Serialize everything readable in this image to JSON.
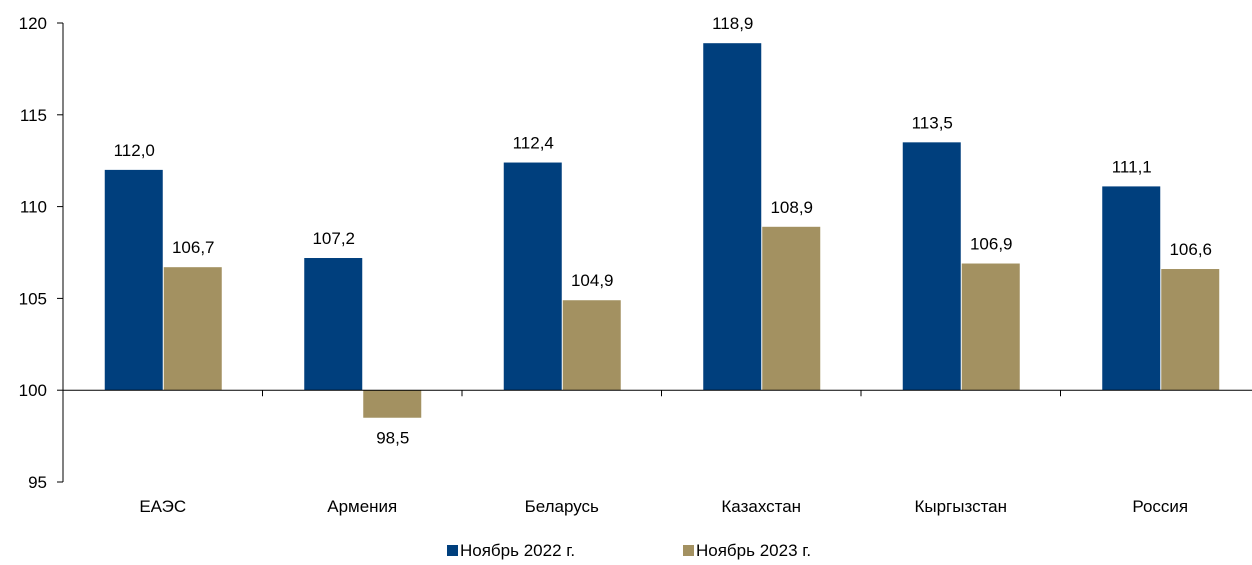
{
  "chart_data": {
    "type": "bar",
    "title": "",
    "xlabel": "",
    "ylabel": "",
    "categories": [
      "ЕАЭС",
      "Армения",
      "Беларусь",
      "Казахстан",
      "Кыргызстан",
      "Россия"
    ],
    "series": [
      {
        "name": "Ноябрь 2022 г.",
        "color": "#003f7d",
        "values": [
          112.0,
          107.2,
          112.4,
          118.9,
          113.5,
          111.1
        ],
        "labels": [
          "112,0",
          "107,2",
          "112,4",
          "118,9",
          "113,5",
          "111,1"
        ]
      },
      {
        "name": "Ноябрь 2023 г.",
        "color": "#a39161",
        "values": [
          106.7,
          98.5,
          104.9,
          108.9,
          106.9,
          106.6
        ],
        "labels": [
          "106,7",
          "98,5",
          "104,9",
          "108,9",
          "106,9",
          "106,6"
        ]
      }
    ],
    "ylim": [
      95,
      120
    ],
    "baseline": 100,
    "y_ticks": [
      95,
      100,
      105,
      110,
      115,
      120
    ],
    "grid": false,
    "legend_position": "bottom"
  }
}
